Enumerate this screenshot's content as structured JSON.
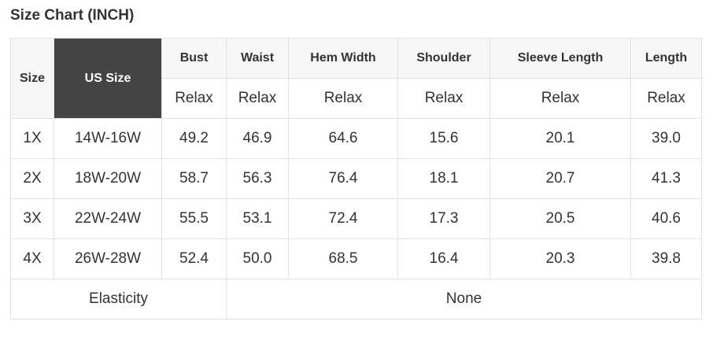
{
  "title": "Size Chart (INCH)",
  "headers": {
    "size": "Size",
    "us_size": "US Size",
    "columns": [
      "Bust",
      "Waist",
      "Hem Width",
      "Shoulder",
      "Sleeve Length",
      "Length"
    ],
    "sub": [
      "Relax",
      "Relax",
      "Relax",
      "Relax",
      "Relax",
      "Relax"
    ]
  },
  "rows": [
    [
      "1X",
      "14W-16W",
      "49.2",
      "46.9",
      "64.6",
      "15.6",
      "20.1",
      "39.0"
    ],
    [
      "2X",
      "18W-20W",
      "58.7",
      "56.3",
      "76.4",
      "18.1",
      "20.7",
      "41.3"
    ],
    [
      "3X",
      "22W-24W",
      "55.5",
      "53.1",
      "72.4",
      "17.3",
      "20.5",
      "40.6"
    ],
    [
      "4X",
      "26W-28W",
      "52.4",
      "50.0",
      "68.5",
      "16.4",
      "20.3",
      "39.8"
    ]
  ],
  "footer": {
    "label": "Elasticity",
    "value": "None"
  },
  "colors": {
    "header_bg": "#f7f7f7",
    "us_size_bg": "#444444",
    "border": "#e2e2e2"
  }
}
